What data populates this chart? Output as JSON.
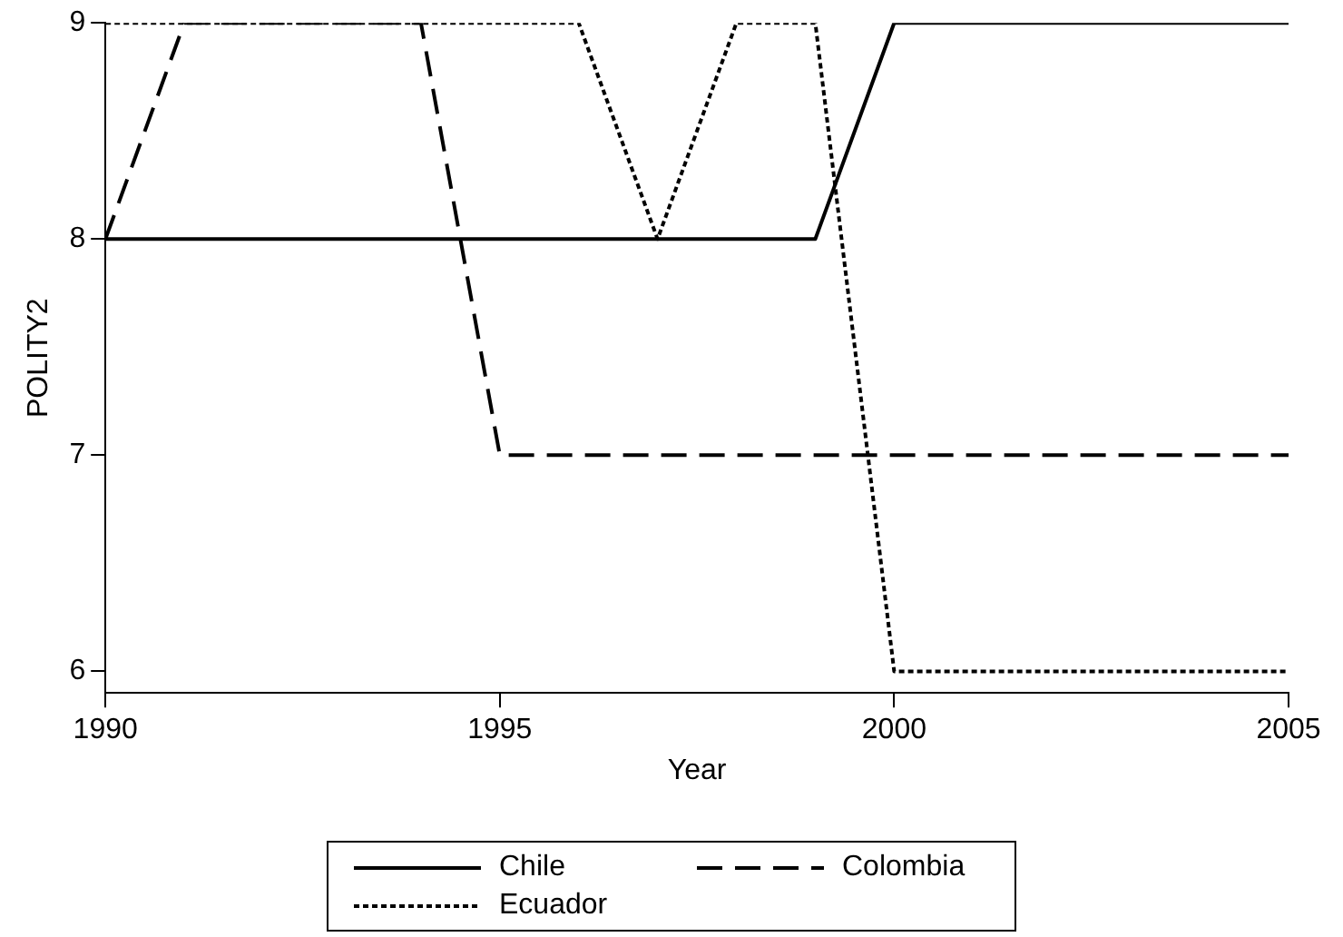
{
  "chart_data": {
    "type": "line",
    "xlabel": "Year",
    "ylabel": "POLITY2",
    "x": [
      1990,
      1991,
      1992,
      1993,
      1994,
      1995,
      1996,
      1997,
      1998,
      1999,
      2000,
      2001,
      2002,
      2003,
      2004,
      2005
    ],
    "series": [
      {
        "name": "Chile",
        "color": "#000000",
        "line_style": "solid",
        "values": [
          8,
          8,
          8,
          8,
          8,
          8,
          8,
          8,
          8,
          8,
          9,
          9,
          9,
          9,
          9,
          9
        ]
      },
      {
        "name": "Colombia",
        "color": "#000000",
        "line_style": "dashed",
        "values": [
          8,
          9,
          9,
          9,
          9,
          7,
          7,
          7,
          7,
          7,
          7,
          7,
          7,
          7,
          7,
          7
        ]
      },
      {
        "name": "Ecuador",
        "color": "#000000",
        "line_style": "dotted",
        "values": [
          9,
          9,
          9,
          9,
          9,
          9,
          9,
          8,
          9,
          9,
          6,
          6,
          6,
          6,
          6,
          6
        ]
      }
    ],
    "xlim": [
      1990,
      2005
    ],
    "xticks": [
      1990,
      1995,
      2000,
      2005
    ],
    "ylim": [
      5.9,
      9
    ],
    "yticks": [
      6,
      7,
      8,
      9
    ],
    "grid": false,
    "legend": "bottom",
    "marker": "none"
  }
}
